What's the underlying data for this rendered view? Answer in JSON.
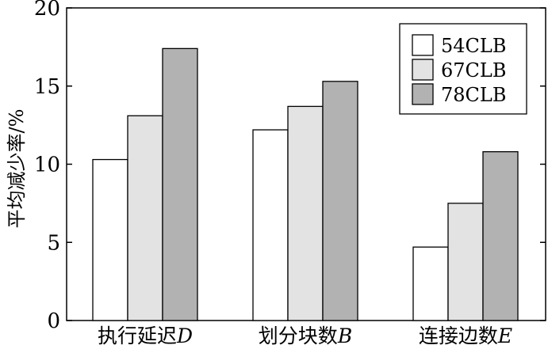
{
  "chart_data": {
    "type": "bar",
    "categories": [
      "执行延迟D",
      "划分块数B",
      "连接边数E"
    ],
    "series": [
      {
        "name": "54CLB",
        "color": "#ffffff",
        "values": [
          10.3,
          12.2,
          4.7
        ]
      },
      {
        "name": "67CLB",
        "color": "#e3e3e3",
        "values": [
          13.1,
          13.7,
          7.5
        ]
      },
      {
        "name": "78CLB",
        "color": "#b2b2b2",
        "values": [
          17.4,
          15.3,
          10.8
        ]
      }
    ],
    "title": "",
    "xlabel": "",
    "ylabel": "平均减少率/%",
    "ylim": [
      0,
      20
    ],
    "yticks": [
      "0",
      "5",
      "10",
      "15",
      "20"
    ],
    "grid": false,
    "legend_position": "top-right"
  }
}
